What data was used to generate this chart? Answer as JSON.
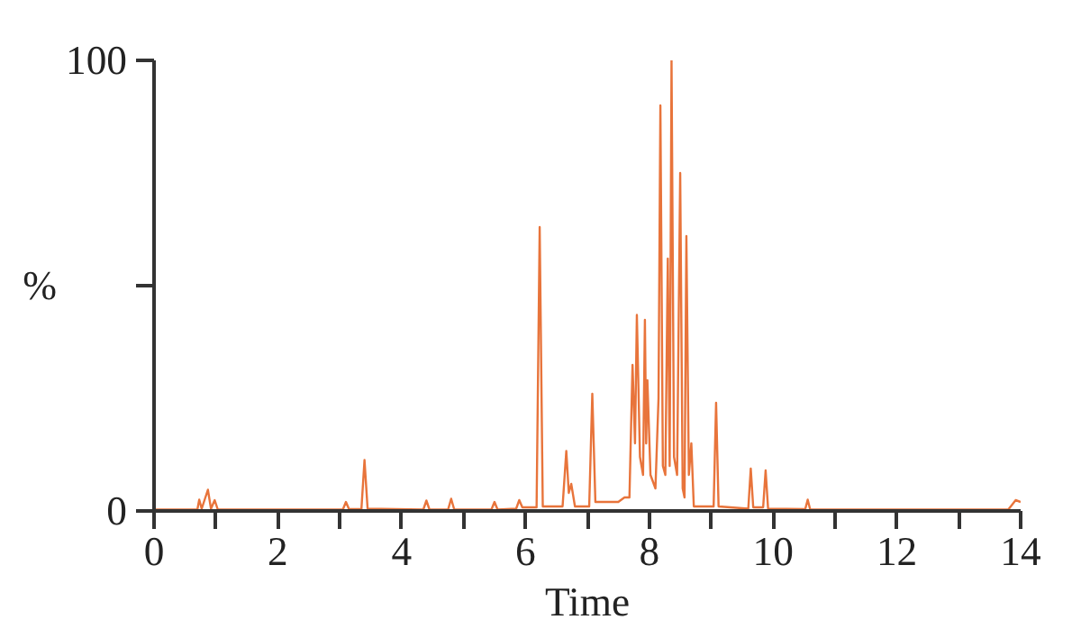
{
  "chart_data": {
    "type": "line",
    "xlabel": "Time",
    "ylabel": "%",
    "xlim": [
      0,
      14
    ],
    "ylim": [
      0,
      100
    ],
    "xticks": [
      0,
      {
        "value": 1,
        "label": null
      },
      2,
      {
        "value": 3,
        "label": null
      },
      4,
      {
        "value": 5,
        "label": null
      },
      6,
      {
        "value": 7,
        "label": null
      },
      8,
      {
        "value": 9,
        "label": null
      },
      10,
      {
        "value": 11,
        "label": null
      },
      12,
      {
        "value": 13,
        "label": null
      },
      14
    ],
    "yticks": [
      0,
      {
        "value": 50,
        "label": null
      },
      100
    ],
    "grid": false,
    "marker": "none",
    "line_style": "solid",
    "series": [
      {
        "color": "#e8743b",
        "x": [
          0,
          0.7,
          0.73,
          0.77,
          0.87,
          0.92,
          0.98,
          1.03,
          3.05,
          3.1,
          3.15,
          3.35,
          3.4,
          3.45,
          4.35,
          4.4,
          4.45,
          4.75,
          4.8,
          4.85,
          5.45,
          5.5,
          5.55,
          5.85,
          5.9,
          5.95,
          6.18,
          6.23,
          6.28,
          6.6,
          6.66,
          6.7,
          6.74,
          6.8,
          7.03,
          7.08,
          7.13,
          7.5,
          7.6,
          7.68,
          7.73,
          7.77,
          7.8,
          7.85,
          7.9,
          7.93,
          7.95,
          7.97,
          8.02,
          8.1,
          8.15,
          8.18,
          8.22,
          8.26,
          8.3,
          8.33,
          8.36,
          8.4,
          8.45,
          8.5,
          8.54,
          8.57,
          8.6,
          8.64,
          8.68,
          8.72,
          9.04,
          9.08,
          9.12,
          9.6,
          9.64,
          9.68,
          9.84,
          9.88,
          9.92,
          10.52,
          10.56,
          10.6,
          13.8,
          13.92,
          14
        ],
        "values": [
          0.3,
          0.3,
          2.5,
          0.5,
          4.7,
          0.5,
          2.4,
          0.3,
          0.3,
          2,
          0.4,
          0.4,
          11.3,
          0.5,
          0.3,
          2.3,
          0.3,
          0.3,
          2.7,
          0.3,
          0.3,
          2,
          0.3,
          0.5,
          2.4,
          0.8,
          0.8,
          63,
          1,
          1,
          13.3,
          4,
          6,
          1,
          1,
          26,
          2,
          2,
          3,
          3,
          32.4,
          15,
          43.5,
          12,
          8,
          42.4,
          15,
          29,
          8,
          5,
          25,
          90,
          10,
          8,
          56,
          10,
          100,
          12,
          8,
          75,
          5,
          3,
          61,
          8,
          15,
          1,
          1,
          24,
          1,
          0.5,
          9.4,
          0.8,
          0.8,
          9,
          0.5,
          0.4,
          2.5,
          0.3,
          0.3,
          2.4,
          2
        ]
      }
    ]
  }
}
